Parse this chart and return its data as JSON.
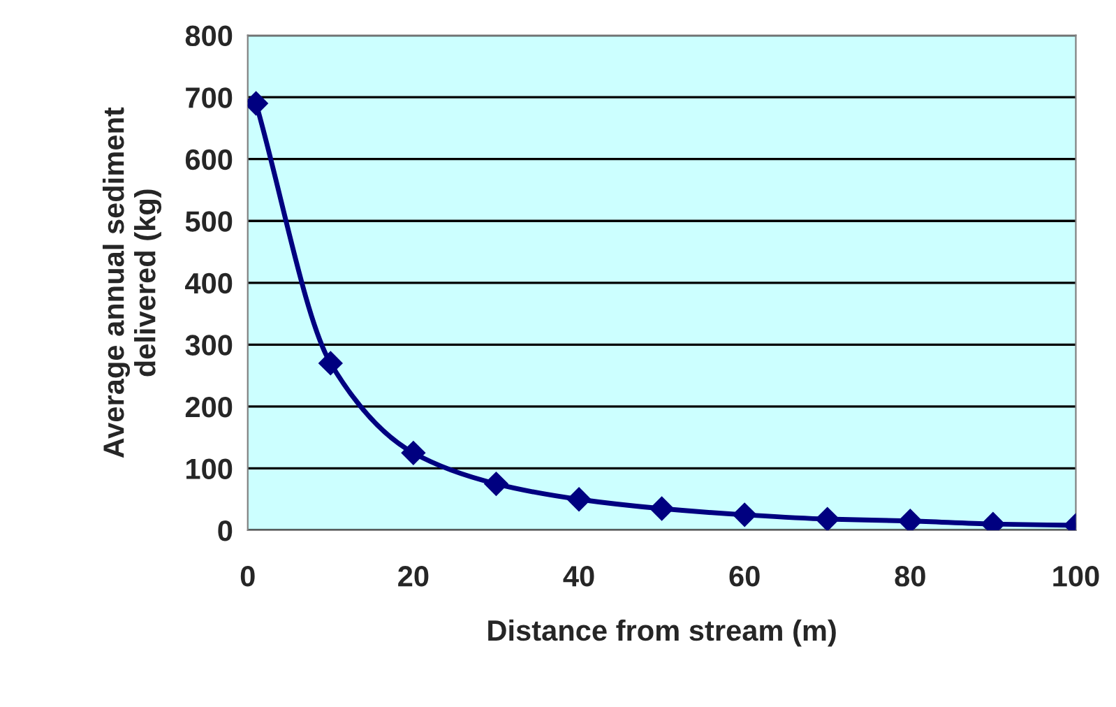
{
  "chart_data": {
    "type": "line",
    "xlabel": "Distance from stream (m)",
    "ylabel": "Average annual sediment\ndelivered (kg)",
    "series": [
      {
        "color": "#000080",
        "x": [
          1,
          10,
          20,
          30,
          40,
          50,
          60,
          70,
          80,
          90,
          100
        ],
        "values": [
          690,
          270,
          125,
          75,
          50,
          35,
          25,
          18,
          15,
          10,
          8
        ]
      }
    ],
    "xlim": [
      0,
      100
    ],
    "xticks": [
      0,
      20,
      40,
      60,
      80,
      100
    ],
    "ylim": [
      0,
      800
    ],
    "yticks": [
      0,
      100,
      200,
      300,
      400,
      500,
      600,
      700,
      800
    ],
    "grid": "y",
    "marker": "diamond",
    "line_style": "solid",
    "legend": false
  }
}
